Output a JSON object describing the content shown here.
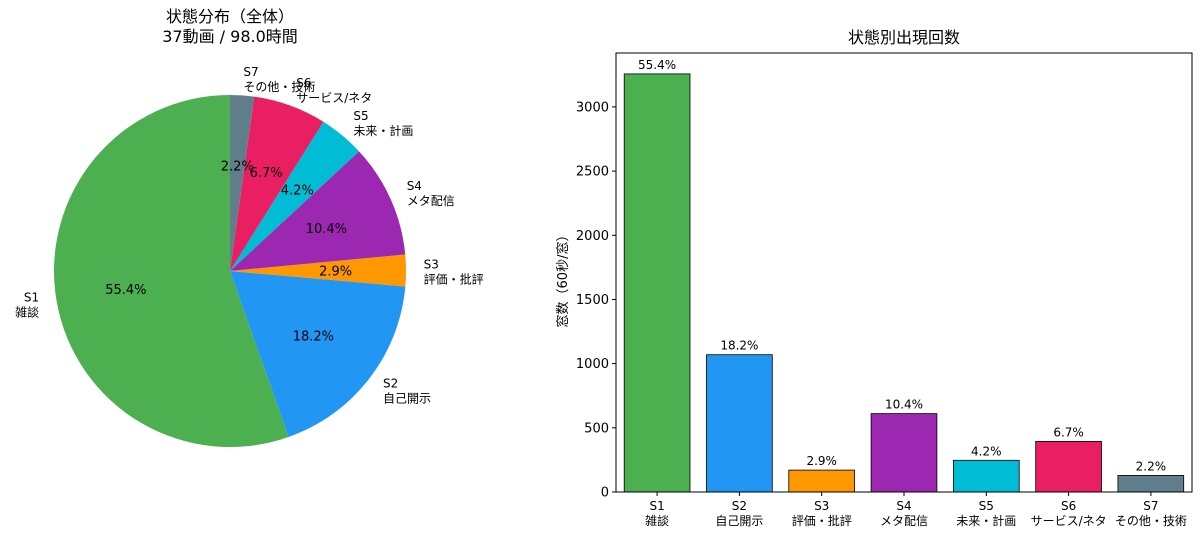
{
  "chart_data": [
    {
      "type": "pie",
      "title": "状態分布（全体）",
      "subtitle": "37動画 / 98.0時間",
      "slices": [
        {
          "code": "S1",
          "label": "雑談",
          "percent": 55.4,
          "pct_label": "55.4%",
          "color": "#4caf50"
        },
        {
          "code": "S2",
          "label": "自己開示",
          "percent": 18.2,
          "pct_label": "18.2%",
          "color": "#2196f3"
        },
        {
          "code": "S3",
          "label": "評価・批評",
          "percent": 2.9,
          "pct_label": "2.9%",
          "color": "#ff9800"
        },
        {
          "code": "S4",
          "label": "メタ配信",
          "percent": 10.4,
          "pct_label": "10.4%",
          "color": "#9c27b0"
        },
        {
          "code": "S5",
          "label": "未来・計画",
          "percent": 4.2,
          "pct_label": "4.2%",
          "color": "#00bcd4"
        },
        {
          "code": "S6",
          "label": "サービス/ネタ",
          "percent": 6.7,
          "pct_label": "6.7%",
          "color": "#e91e63"
        },
        {
          "code": "S7",
          "label": "その他・技術",
          "percent": 2.2,
          "pct_label": "2.2%",
          "color": "#607d8b"
        }
      ],
      "start_angle_deg": 90,
      "direction": "counterclockwise"
    },
    {
      "type": "bar",
      "title": "状態別出現回数",
      "ylabel": "窓数（60秒/窓）",
      "xlabel": "",
      "ylim": [
        0,
        3420
      ],
      "yticks": [
        0,
        500,
        1000,
        1500,
        2000,
        2500,
        3000
      ],
      "categories": [
        {
          "code": "S1",
          "label": "雑談"
        },
        {
          "code": "S2",
          "label": "自己開示"
        },
        {
          "code": "S3",
          "label": "評価・批評"
        },
        {
          "code": "S4",
          "label": "メタ配信"
        },
        {
          "code": "S5",
          "label": "未来・計画"
        },
        {
          "code": "S6",
          "label": "サービス/ネタ"
        },
        {
          "code": "S7",
          "label": "その他・技術"
        }
      ],
      "values": [
        3257,
        1070,
        171,
        611,
        247,
        394,
        129
      ],
      "data_labels": [
        "55.4%",
        "18.2%",
        "2.9%",
        "10.4%",
        "4.2%",
        "6.7%",
        "2.2%"
      ],
      "colors": [
        "#4caf50",
        "#2196f3",
        "#ff9800",
        "#9c27b0",
        "#00bcd4",
        "#e91e63",
        "#607d8b"
      ],
      "grid": false
    }
  ]
}
